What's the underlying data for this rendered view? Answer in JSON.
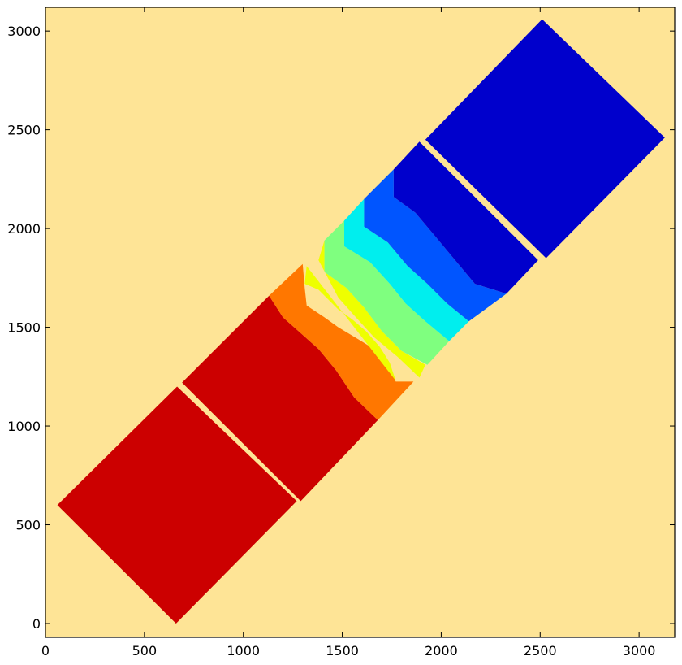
{
  "chart_data": {
    "type": "contour",
    "title": "",
    "xlabel": "",
    "ylabel": "",
    "xlim": [
      0,
      3180
    ],
    "ylim": [
      -70,
      3120
    ],
    "x_ticks": [
      0,
      500,
      1000,
      1500,
      2000,
      2500,
      3000
    ],
    "y_ticks": [
      0,
      500,
      1000,
      1500,
      2000,
      2500,
      3000
    ],
    "grid": false,
    "legend": "none",
    "colors": {
      "background": "#fee496",
      "dark_red": "#cc0000",
      "orange": "#ff7700",
      "yellow": "#eeff00",
      "light_green": "#7fff7f",
      "cyan": "#00eeee",
      "blue": "#0055ff",
      "dark_blue": "#0000cc"
    },
    "regions": [
      {
        "color": "#cc0000",
        "points": [
          [
            660,
            0
          ],
          [
            1270,
            620
          ],
          [
            665,
            1200
          ],
          [
            60,
            600
          ]
        ]
      },
      {
        "color": "#cc0000",
        "points": [
          [
            1290,
            620
          ],
          [
            1680,
            1030
          ],
          [
            1560,
            1145
          ],
          [
            1470,
            1280
          ],
          [
            1380,
            1390
          ],
          [
            1200,
            1550
          ],
          [
            1130,
            1660
          ],
          [
            690,
            1220
          ]
        ]
      },
      {
        "color": "#ff7700",
        "points": [
          [
            1680,
            1030
          ],
          [
            1860,
            1225
          ],
          [
            1770,
            1225
          ],
          [
            1730,
            1320
          ],
          [
            1660,
            1390
          ],
          [
            1580,
            1440
          ],
          [
            1480,
            1500
          ],
          [
            1410,
            1550
          ],
          [
            1320,
            1610
          ],
          [
            1310,
            1700
          ],
          [
            1300,
            1820
          ],
          [
            1130,
            1660
          ],
          [
            1200,
            1550
          ],
          [
            1380,
            1390
          ],
          [
            1470,
            1280
          ],
          [
            1560,
            1145
          ]
        ]
      },
      {
        "color": "#eeff00",
        "points": [
          [
            1320,
            1810
          ],
          [
            1310,
            1720
          ],
          [
            1380,
            1690
          ],
          [
            1480,
            1590
          ],
          [
            1550,
            1540
          ],
          [
            1620,
            1480
          ],
          [
            1690,
            1400
          ],
          [
            1740,
            1320
          ],
          [
            1770,
            1230
          ],
          [
            1870,
            1245
          ],
          [
            1770,
            1230
          ]
        ]
      },
      {
        "color": "#eeff00",
        "points": [
          [
            1380,
            1840
          ],
          [
            1410,
            1940
          ],
          [
            1410,
            1780
          ],
          [
            1520,
            1700
          ],
          [
            1610,
            1600
          ],
          [
            1700,
            1480
          ],
          [
            1800,
            1380
          ],
          [
            1920,
            1310
          ],
          [
            1890,
            1245
          ],
          [
            1780,
            1350
          ],
          [
            1660,
            1450
          ],
          [
            1560,
            1560
          ],
          [
            1480,
            1650
          ]
        ]
      },
      {
        "color": "#7fff7f",
        "points": [
          [
            1410,
            1940
          ],
          [
            1510,
            2040
          ],
          [
            1510,
            1910
          ],
          [
            1640,
            1830
          ],
          [
            1740,
            1720
          ],
          [
            1820,
            1620
          ],
          [
            1920,
            1530
          ],
          [
            2040,
            1430
          ],
          [
            1930,
            1310
          ],
          [
            1800,
            1380
          ],
          [
            1700,
            1480
          ],
          [
            1610,
            1600
          ],
          [
            1520,
            1700
          ],
          [
            1410,
            1780
          ]
        ]
      },
      {
        "color": "#00eeee",
        "points": [
          [
            1510,
            2040
          ],
          [
            1610,
            2150
          ],
          [
            1610,
            2010
          ],
          [
            1730,
            1930
          ],
          [
            1830,
            1810
          ],
          [
            1930,
            1720
          ],
          [
            2030,
            1620
          ],
          [
            2140,
            1530
          ],
          [
            2040,
            1430
          ],
          [
            1920,
            1530
          ],
          [
            1820,
            1620
          ],
          [
            1740,
            1720
          ],
          [
            1640,
            1830
          ],
          [
            1510,
            1910
          ]
        ]
      },
      {
        "color": "#0055ff",
        "points": [
          [
            1610,
            2150
          ],
          [
            1760,
            2300
          ],
          [
            1760,
            2160
          ],
          [
            1870,
            2080
          ],
          [
            1970,
            1960
          ],
          [
            2070,
            1840
          ],
          [
            2170,
            1720
          ],
          [
            2330,
            1670
          ],
          [
            2140,
            1530
          ],
          [
            2030,
            1620
          ],
          [
            1930,
            1720
          ],
          [
            1830,
            1810
          ],
          [
            1730,
            1930
          ],
          [
            1610,
            2010
          ]
        ]
      },
      {
        "color": "#0000cc",
        "points": [
          [
            1760,
            2300
          ],
          [
            1890,
            2440
          ],
          [
            2490,
            1840
          ],
          [
            2330,
            1670
          ],
          [
            2170,
            1720
          ],
          [
            2070,
            1840
          ],
          [
            1970,
            1960
          ],
          [
            1870,
            2080
          ],
          [
            1760,
            2160
          ]
        ]
      },
      {
        "color": "#0000cc",
        "points": [
          [
            1920,
            2450
          ],
          [
            2510,
            3060
          ],
          [
            3130,
            2460
          ],
          [
            2530,
            1850
          ]
        ]
      }
    ]
  }
}
